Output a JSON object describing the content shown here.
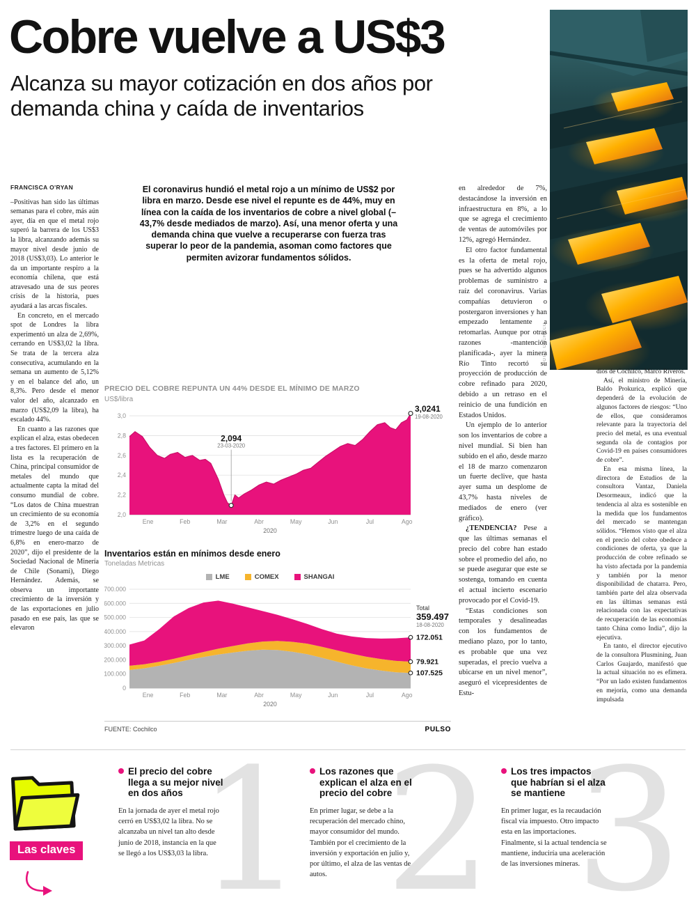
{
  "page": {
    "headline": "Cobre vuelve a US$3",
    "subheadline": "Alcanza su mayor cotización en dos años por demanda china y caída de inventarios",
    "byline": "FRANCISCA O'RYAN",
    "photo_credit": "FOTO: COCHILCO",
    "intro": "El coronavirus hundió el metal rojo a un mínimo de US$2 por libra en marzo. Desde ese nivel el repunte es de 44%, muy en línea con la caída de los inventarios de cobre a nivel global (–43,7% desde mediados de marzo). Así, una menor oferta y una demanda china que vuelve a recuperarse con fuerza tras superar lo peor de la pandemia, asoman como factores que permiten avizorar fundamentos sólidos.",
    "col1": [
      "–Positivas han sido las últimas semanas para el cobre, más aún ayer, día en que el metal rojo superó la barrera de los US$3 la libra, alcanzando además su mayor nivel desde junio de 2018 (US$3,03). Lo anterior le da un importante respiro a la economía chilena, que está atravesado una de sus peores crisis de la historia, pues ayudará a las arcas fiscales.",
      "En concreto, en el mercado spot de Londres la libra experimentó un alza de 2,69%, cerrando en US$3,02 la libra. Se trata de la tercera alza consecutiva, acumulando en la semana un aumento de 5,12% y en el balance del año, un 8,3%. Pero desde el menor valor del año, alcanzado en marzo (US$2,09 la libra), ha escalado 44%.",
      "En cuanto a las razones que explican el alza, estas obedecen a tres factores. El primero en la lista es la recuperación de China, principal consumidor de metales del mundo que actualmente capta la mitad del consumo mundial de cobre. “Los datos de China muestran un crecimiento de su economía de 3,2% en el segundo trimestre luego de una caída de 6,8% en enero-marzo de 2020”, dijo el presidente de la Sociedad Nacional de Minería de Chile (Sonami), Diego Hernández. Además, se observa un importante crecimiento de la inversión y de las exportaciones en julio pasado en ese país, las que se elevaron"
    ],
    "col3": [
      "en alrededor de 7%, destacándose la inversión en infraestructura en 8%, a lo que se agrega el crecimiento de ventas de automóviles por 12%, agregó Hernández.",
      "El otro factor fundamental es la oferta de metal rojo, pues se ha advertido algunos problemas de suministro a raíz del coronavirus. Varias compañías detuvieron o postergaron inversiones y han empezado lentamente a retomarlas. Aunque por otras razones -mantención planificada-, ayer la minera Río Tinto recortó su proyección de producción de cobre refinado para 2020, debido a un retraso en el reinicio de una fundición en Estados Unidos.",
      "Un ejemplo de lo anterior son los inventarios de cobre a nivel mundial. Si bien han subido en el año, desde marzo el 18 de marzo comenzaron un fuerte declive, que hasta ayer suma un desplome de 43,7% hasta niveles de mediados de enero (ver gráfico).",
      {
        "lead": "¿TENDENCIA?",
        "text": "Pese a que las últimas semanas el precio del cobre han estado sobre el promedio del año, no se puede asegurar que este se sostenga, tomando en cuenta el actual incierto escenario provocado por el Covid-19."
      },
      "“Estas condiciones son temporales y desalineadas con los fundamentos de mediano plazo, por lo tanto, es probable que una vez superadas, el precio vuelva a ubicarse en un nivel menor”, aseguró el vicepresidentes de Estu-"
    ],
    "col4": [
      "dios de Cochilco, Marco Riveros.",
      "Así, el ministro de Minería, Baldo Prokurica, explicó que dependerá de la evolución de algunos factores de riesgos: “Uno de ellos, que consideramos relevante para la trayectoria del precio del metal, es una eventual segunda ola de contagios por Covid-19 en países consumidores de cobre”.",
      "En esa misma línea, la directora de Estudios de la consultora Vantaz, Daniela Desormeaux, indicó que la tendencia al alza es sostenible en la medida que los fundamentos del mercado se mantengan sólidos. “Hemos visto que el alza en el precio del cobre obedece a condiciones de oferta, ya que la producción de cobre refinado se ha visto afectada por la pandemia y también por la menor disponibilidad de chatarra. Pero, también parte del alza observada en las últimas semanas está relacionada con las expectativas de recuperación de las economías tanto China como India”, dijo la ejecutiva.",
      "En tanto, el director ejecutivo de la consultora Plusmining, Juan Carlos Guajardo, manifestó que la actual situación no es efímera. “Por un lado existen fundamentos en mejoría, como una demanda impulsada"
    ],
    "source": "FUENTE: Cochilco",
    "brand": "PULSO"
  },
  "chart_data": [
    {
      "type": "area",
      "title": "PRECIO DEL COBRE REPUNTA UN 44% DESDE EL MÍNIMO DE MARZO",
      "ylabel": "US$/libra",
      "ylim": [
        2.0,
        3.0
      ],
      "ytick_labels": [
        "3,0",
        "2,8",
        "2,6",
        "2,4",
        "2,2",
        "2,0"
      ],
      "xlabels": [
        "Ene",
        "Feb",
        "Mar",
        "Abr",
        "May",
        "Jun",
        "Jul",
        "Ago"
      ],
      "year": "2020",
      "xdomain": [
        0,
        7.6
      ],
      "color": "#e8127c",
      "edge_color": "#c90d66",
      "x": [
        0,
        0.15,
        0.35,
        0.55,
        0.75,
        0.95,
        1.1,
        1.3,
        1.5,
        1.7,
        1.9,
        2.05,
        2.2,
        2.4,
        2.55,
        2.65,
        2.75,
        2.85,
        2.95,
        3.1,
        3.3,
        3.5,
        3.7,
        3.9,
        4.1,
        4.3,
        4.5,
        4.7,
        4.9,
        5.1,
        5.3,
        5.5,
        5.7,
        5.9,
        6.1,
        6.3,
        6.5,
        6.7,
        6.9,
        7.05,
        7.2,
        7.35,
        7.5,
        7.6
      ],
      "values": [
        2.79,
        2.84,
        2.79,
        2.68,
        2.6,
        2.57,
        2.61,
        2.63,
        2.58,
        2.6,
        2.55,
        2.56,
        2.52,
        2.36,
        2.2,
        2.12,
        2.094,
        2.2,
        2.17,
        2.21,
        2.25,
        2.3,
        2.33,
        2.31,
        2.35,
        2.38,
        2.41,
        2.45,
        2.47,
        2.53,
        2.59,
        2.64,
        2.69,
        2.72,
        2.7,
        2.76,
        2.84,
        2.91,
        2.93,
        2.88,
        2.86,
        2.93,
        2.96,
        3.0241
      ],
      "min_annotation": {
        "x": 2.75,
        "value": 2.094,
        "label": "2,094",
        "date": "23-03-2020"
      },
      "max_annotation": {
        "x": 7.6,
        "value": 3.0241,
        "label": "3,0241",
        "date": "19-08-2020"
      }
    },
    {
      "type": "stacked-area",
      "title": "Inventarios están en mínimos desde enero",
      "ylabel": "Toneladas Metricas",
      "ylim": [
        0,
        700000
      ],
      "ytick_labels": [
        "700.000",
        "600.000",
        "500.000",
        "400.000",
        "300.000",
        "200.000",
        "100.000",
        "0"
      ],
      "xlabels": [
        "Ene",
        "Feb",
        "Mar",
        "Abr",
        "May",
        "Jun",
        "Jul",
        "Ago"
      ],
      "year": "2020",
      "xdomain": [
        0,
        7.6
      ],
      "x": [
        0,
        0.4,
        0.8,
        1.2,
        1.6,
        2.0,
        2.4,
        2.8,
        3.2,
        3.6,
        4.0,
        4.4,
        4.8,
        5.2,
        5.6,
        6.0,
        6.4,
        6.8,
        7.2,
        7.6
      ],
      "series": [
        {
          "name": "LME",
          "color": "#b3b3b3",
          "end_label": "107.525",
          "values": [
            128000,
            140000,
            158000,
            178000,
            200000,
            220000,
            238000,
            252000,
            265000,
            272000,
            270000,
            258000,
            240000,
            215000,
            188000,
            162000,
            140000,
            124000,
            112000,
            107525
          ]
        },
        {
          "name": "COMEX",
          "color": "#f6b42c",
          "end_label": "79.921",
          "values": [
            30000,
            29000,
            28500,
            29500,
            32000,
            36000,
            41000,
            46000,
            52000,
            58000,
            64000,
            70000,
            75000,
            78000,
            80000,
            82000,
            82500,
            81500,
            80500,
            79921
          ]
        },
        {
          "name": "SHANGAI",
          "color": "#e8127c",
          "end_label": "172.051",
          "values": [
            150000,
            168000,
            230000,
            300000,
            335000,
            350000,
            340000,
            300000,
            255000,
            215000,
            185000,
            160000,
            140000,
            125000,
            118000,
            122000,
            132000,
            145000,
            160000,
            172051
          ]
        }
      ],
      "total": {
        "label": "Total",
        "value": "359.497",
        "date": "18-08-2020"
      },
      "legend_position": "top"
    }
  ],
  "claves": {
    "label": "Las claves",
    "items": [
      {
        "number": "1",
        "title": "El precio del cobre llega a su mejor nivel en dos años",
        "body": "En la jornada de ayer el metal rojo cerró en US$3,02 la libra. No se alcanzaba un nivel tan alto desde junio de 2018, instancia en la que se llegó a los US$3,03 la libra."
      },
      {
        "number": "2",
        "title": "Los razones que explican el alza en el precio del cobre",
        "body": "En primer lugar, se debe a la recuperación del mercado chino, mayor consumidor del mundo. También por el crecimiento de la inversión y exportación en julio y, por último, el alza de las ventas de autos."
      },
      {
        "number": "3",
        "title": "Los tres impactos que habrían si el alza se mantiene",
        "body": "En primer lugar, es la recaudación fiscal vía impuesto. Otro impacto esta en las importaciones. Finalmente, si la actual tendencia se mantiene, induciría una aceleración de las inversiones mineras."
      }
    ]
  },
  "colors": {
    "magenta": "#e8127c",
    "comex_yellow": "#f6b42c",
    "lme_gray": "#b3b3b3",
    "folder_neon": "#e6fb00"
  }
}
